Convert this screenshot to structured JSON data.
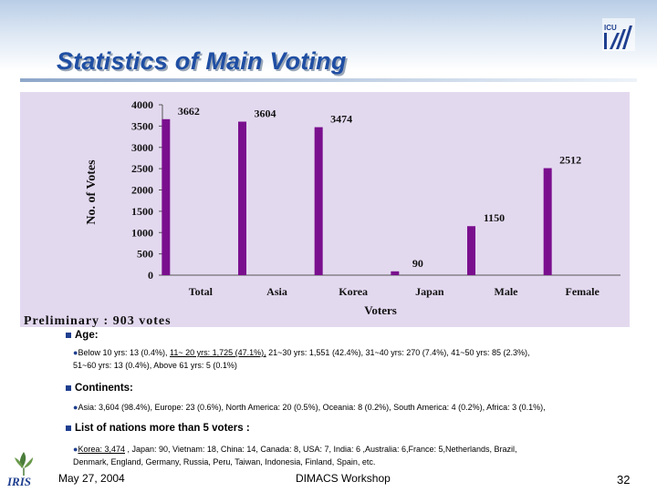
{
  "title": "Statistics of Main Voting",
  "logo_text": "ICU",
  "iris_text": "IRIS",
  "colors": {
    "bar": "#7a0f8e",
    "plot_bg": "#e3d9ef",
    "title": "#1f4ea3"
  },
  "chart_data": {
    "type": "bar",
    "categories": [
      "Total",
      "Asia",
      "Korea",
      "Japan",
      "Male",
      "Female"
    ],
    "values": [
      3662,
      3604,
      3474,
      90,
      1150,
      2512
    ],
    "value_labels": [
      "3662",
      "3604",
      "3474",
      "90",
      "1150",
      "2512"
    ],
    "yticks": [
      "0",
      "500",
      "1000",
      "1500",
      "2000",
      "2500",
      "3000",
      "3500",
      "4000"
    ],
    "ylim": [
      0,
      4000
    ],
    "ylabel": "No. of Votes",
    "xlabel": "Voters",
    "grid": false,
    "annotation": "Preliminary : 903 votes"
  },
  "sections": {
    "age": {
      "heading": "Age:",
      "line1_pre": "Below 10 yrs:  13 (0.4%), ",
      "line1_underlined": "11~ 20 yrs: 1,725 (47.1%),",
      "line1_post": " 21~30 yrs: 1,551 (42.4%), 31~40 yrs: 270 (7.4%), 41~50 yrs: 85 (2.3%),",
      "line2": "51~60 yrs: 13 (0.4%), Above 61 yrs: 5 (0.1%)"
    },
    "continents": {
      "heading": "Continents:",
      "line1": "Asia: 3,604 (98.4%), Europe: 23 (0.6%), North America: 20 (0.5%), Oceania: 8 (0.2%), South America: 4 (0.2%), Africa: 3 (0.1%),"
    },
    "nations": {
      "heading": "List of nations more than 5 voters :",
      "line1_underlined": "Korea: 3,474",
      "line1_post": " , Japan: 90, Vietnam: 18, China: 14, Canada: 8, USA: 7, India: 6 ,Australia: 6,France: 5,Netherlands, Brazil,",
      "line2": "Denmark, England, Germany,  Russia, Peru, Taiwan, Indonesia,  Finland,  Spain, etc."
    }
  },
  "footer": {
    "date": "May 27, 2004",
    "center": "DIMACS Workshop",
    "page": "32"
  }
}
